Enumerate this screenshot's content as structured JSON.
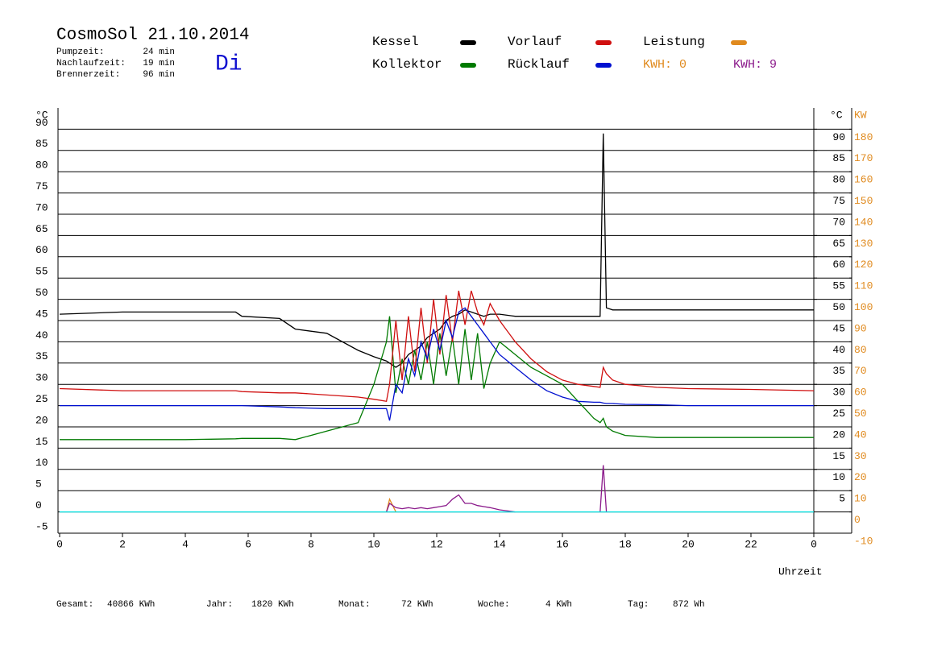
{
  "chart_data": {
    "type": "line",
    "title": "CosmoSol 21.10.2014",
    "day": "Di",
    "info": [
      [
        "Pumpzeit:",
        "24 min"
      ],
      [
        "Nachlaufzeit:",
        "19 min"
      ],
      [
        "Brennerzeit:",
        "96 min"
      ]
    ],
    "kwh_labels": [
      {
        "text": "KWH: 0",
        "color": "#e08a1e"
      },
      {
        "text": "KWH: 9",
        "color": "#8b1a8b"
      }
    ],
    "y_label": "°C",
    "y2_label_c": "°C",
    "y2_label": "KW",
    "x_label": "Uhrzeit",
    "totals": [
      [
        "Gesamt:",
        "40866 KWh"
      ],
      [
        "Jahr:",
        "1820 KWh"
      ],
      [
        "Monat:",
        "72 KWh"
      ],
      [
        "Woche:",
        "4 KWh"
      ],
      [
        "Tag:",
        "872 Wh"
      ]
    ],
    "x": [
      0,
      2,
      4,
      5.6,
      5.8,
      7,
      7.5,
      8.5,
      9.5,
      10,
      10.4,
      10.5,
      10.7,
      10.9,
      11.1,
      11.3,
      11.5,
      11.7,
      11.9,
      12.1,
      12.3,
      12.5,
      12.7,
      12.9,
      13.1,
      13.3,
      13.5,
      13.7,
      14,
      14.5,
      15,
      15.5,
      16,
      16.5,
      17,
      17.2,
      17.3,
      17.4,
      17.6,
      18,
      19,
      20,
      22,
      24
    ],
    "series": [
      {
        "name": "Kessel",
        "color": "#000000",
        "values": [
          46.5,
          47,
          47,
          47,
          46,
          45.5,
          43,
          42,
          38,
          36.5,
          35.5,
          35,
          34,
          35,
          37,
          38,
          39,
          41,
          42,
          43,
          45,
          46,
          46.5,
          47.5,
          47,
          46.5,
          46,
          46.5,
          46.5,
          46,
          46,
          46,
          46,
          46,
          46,
          46,
          89,
          48,
          47.5,
          47.5,
          47.5,
          47.5,
          47.5,
          47.5
        ]
      },
      {
        "name": "Kollektor",
        "color": "#007a00",
        "values": [
          17,
          17,
          17,
          17.2,
          17.3,
          17.3,
          17,
          19,
          21,
          30,
          40,
          46,
          28,
          36,
          30,
          38,
          31,
          40,
          30,
          42,
          32,
          41,
          30,
          43,
          31,
          42,
          29,
          35,
          40,
          37,
          34,
          32,
          30,
          26,
          22,
          21,
          22,
          20,
          19,
          18,
          17.5,
          17.5,
          17.5,
          17.5
        ]
      },
      {
        "name": "Vorlauf",
        "color": "#d01010",
        "values": [
          29,
          28.5,
          28.5,
          28.5,
          28.3,
          28,
          28,
          27.5,
          27,
          26.5,
          26,
          30,
          45,
          31,
          46,
          33,
          48,
          35,
          50,
          37,
          51,
          40,
          52,
          44,
          52,
          47,
          44,
          49,
          45,
          40,
          36,
          33,
          31,
          30,
          29.5,
          29.3,
          34,
          32.5,
          31,
          30,
          29.3,
          29,
          28.8,
          28.5
        ]
      },
      {
        "name": "Rücklauf",
        "color": "#0010d0",
        "values": [
          25,
          25,
          25,
          25,
          25,
          24.7,
          24.5,
          24.3,
          24.3,
          24.3,
          24.3,
          21.5,
          30,
          28,
          36,
          32,
          40,
          36,
          43,
          38,
          45,
          41,
          47,
          48,
          46,
          44,
          42,
          40,
          37,
          34,
          31,
          28.5,
          27,
          26,
          25.8,
          25.8,
          25.6,
          25.5,
          25.5,
          25.3,
          25.2,
          25,
          25,
          25
        ]
      },
      {
        "name": "Leistung",
        "color": "#e08a1e",
        "axis": "y2",
        "values": [
          null,
          null,
          null,
          null,
          null,
          null,
          null,
          null,
          null,
          null,
          0,
          6,
          0,
          null,
          null,
          null,
          null,
          null,
          null,
          null,
          null,
          null,
          null,
          null,
          null,
          null,
          null,
          null,
          null,
          null,
          null,
          null,
          null,
          null,
          null,
          null,
          null,
          null,
          null,
          null,
          null,
          null,
          null,
          null
        ]
      },
      {
        "color": "#8b1a8b",
        "axis": "y2",
        "values": [
          null,
          null,
          null,
          null,
          null,
          null,
          null,
          null,
          null,
          null,
          0,
          4,
          2,
          1.5,
          2,
          1.5,
          2,
          1.5,
          2,
          2.5,
          3,
          6,
          8,
          4,
          4,
          3,
          2.5,
          2,
          1,
          0,
          null,
          null,
          null,
          null,
          null,
          0,
          22,
          0,
          null,
          null,
          null,
          null,
          null,
          null
        ]
      },
      {
        "color": "#00e0e0",
        "values": [
          0,
          0,
          0,
          0,
          0,
          0,
          0,
          0,
          0,
          0,
          0,
          0,
          0,
          0,
          0,
          0,
          0,
          0,
          0,
          0,
          0,
          0,
          0,
          0,
          0,
          0,
          0,
          0,
          0,
          0,
          0,
          0,
          0,
          0,
          0,
          0,
          0,
          0,
          0,
          0,
          0,
          0,
          0,
          0
        ]
      }
    ],
    "xlim": [
      0,
      24
    ],
    "xticks": [
      0,
      2,
      4,
      6,
      8,
      10,
      12,
      14,
      16,
      18,
      20,
      22,
      {
        "value": 24,
        "label": "0"
      }
    ],
    "ylim": [
      -5,
      95
    ],
    "yticks": [
      -5,
      0,
      5,
      10,
      15,
      20,
      25,
      30,
      35,
      40,
      45,
      50,
      55,
      60,
      65,
      70,
      75,
      80,
      85,
      90
    ],
    "yticks_right": [
      5,
      10,
      15,
      20,
      25,
      30,
      35,
      40,
      45,
      50,
      55,
      60,
      65,
      70,
      75,
      80,
      85,
      90
    ],
    "y2lim": [
      -10,
      190
    ],
    "y2ticks": [
      -10,
      0,
      10,
      20,
      30,
      40,
      50,
      60,
      70,
      80,
      90,
      100,
      110,
      120,
      130,
      140,
      150,
      160,
      170,
      180
    ],
    "grid": true
  }
}
